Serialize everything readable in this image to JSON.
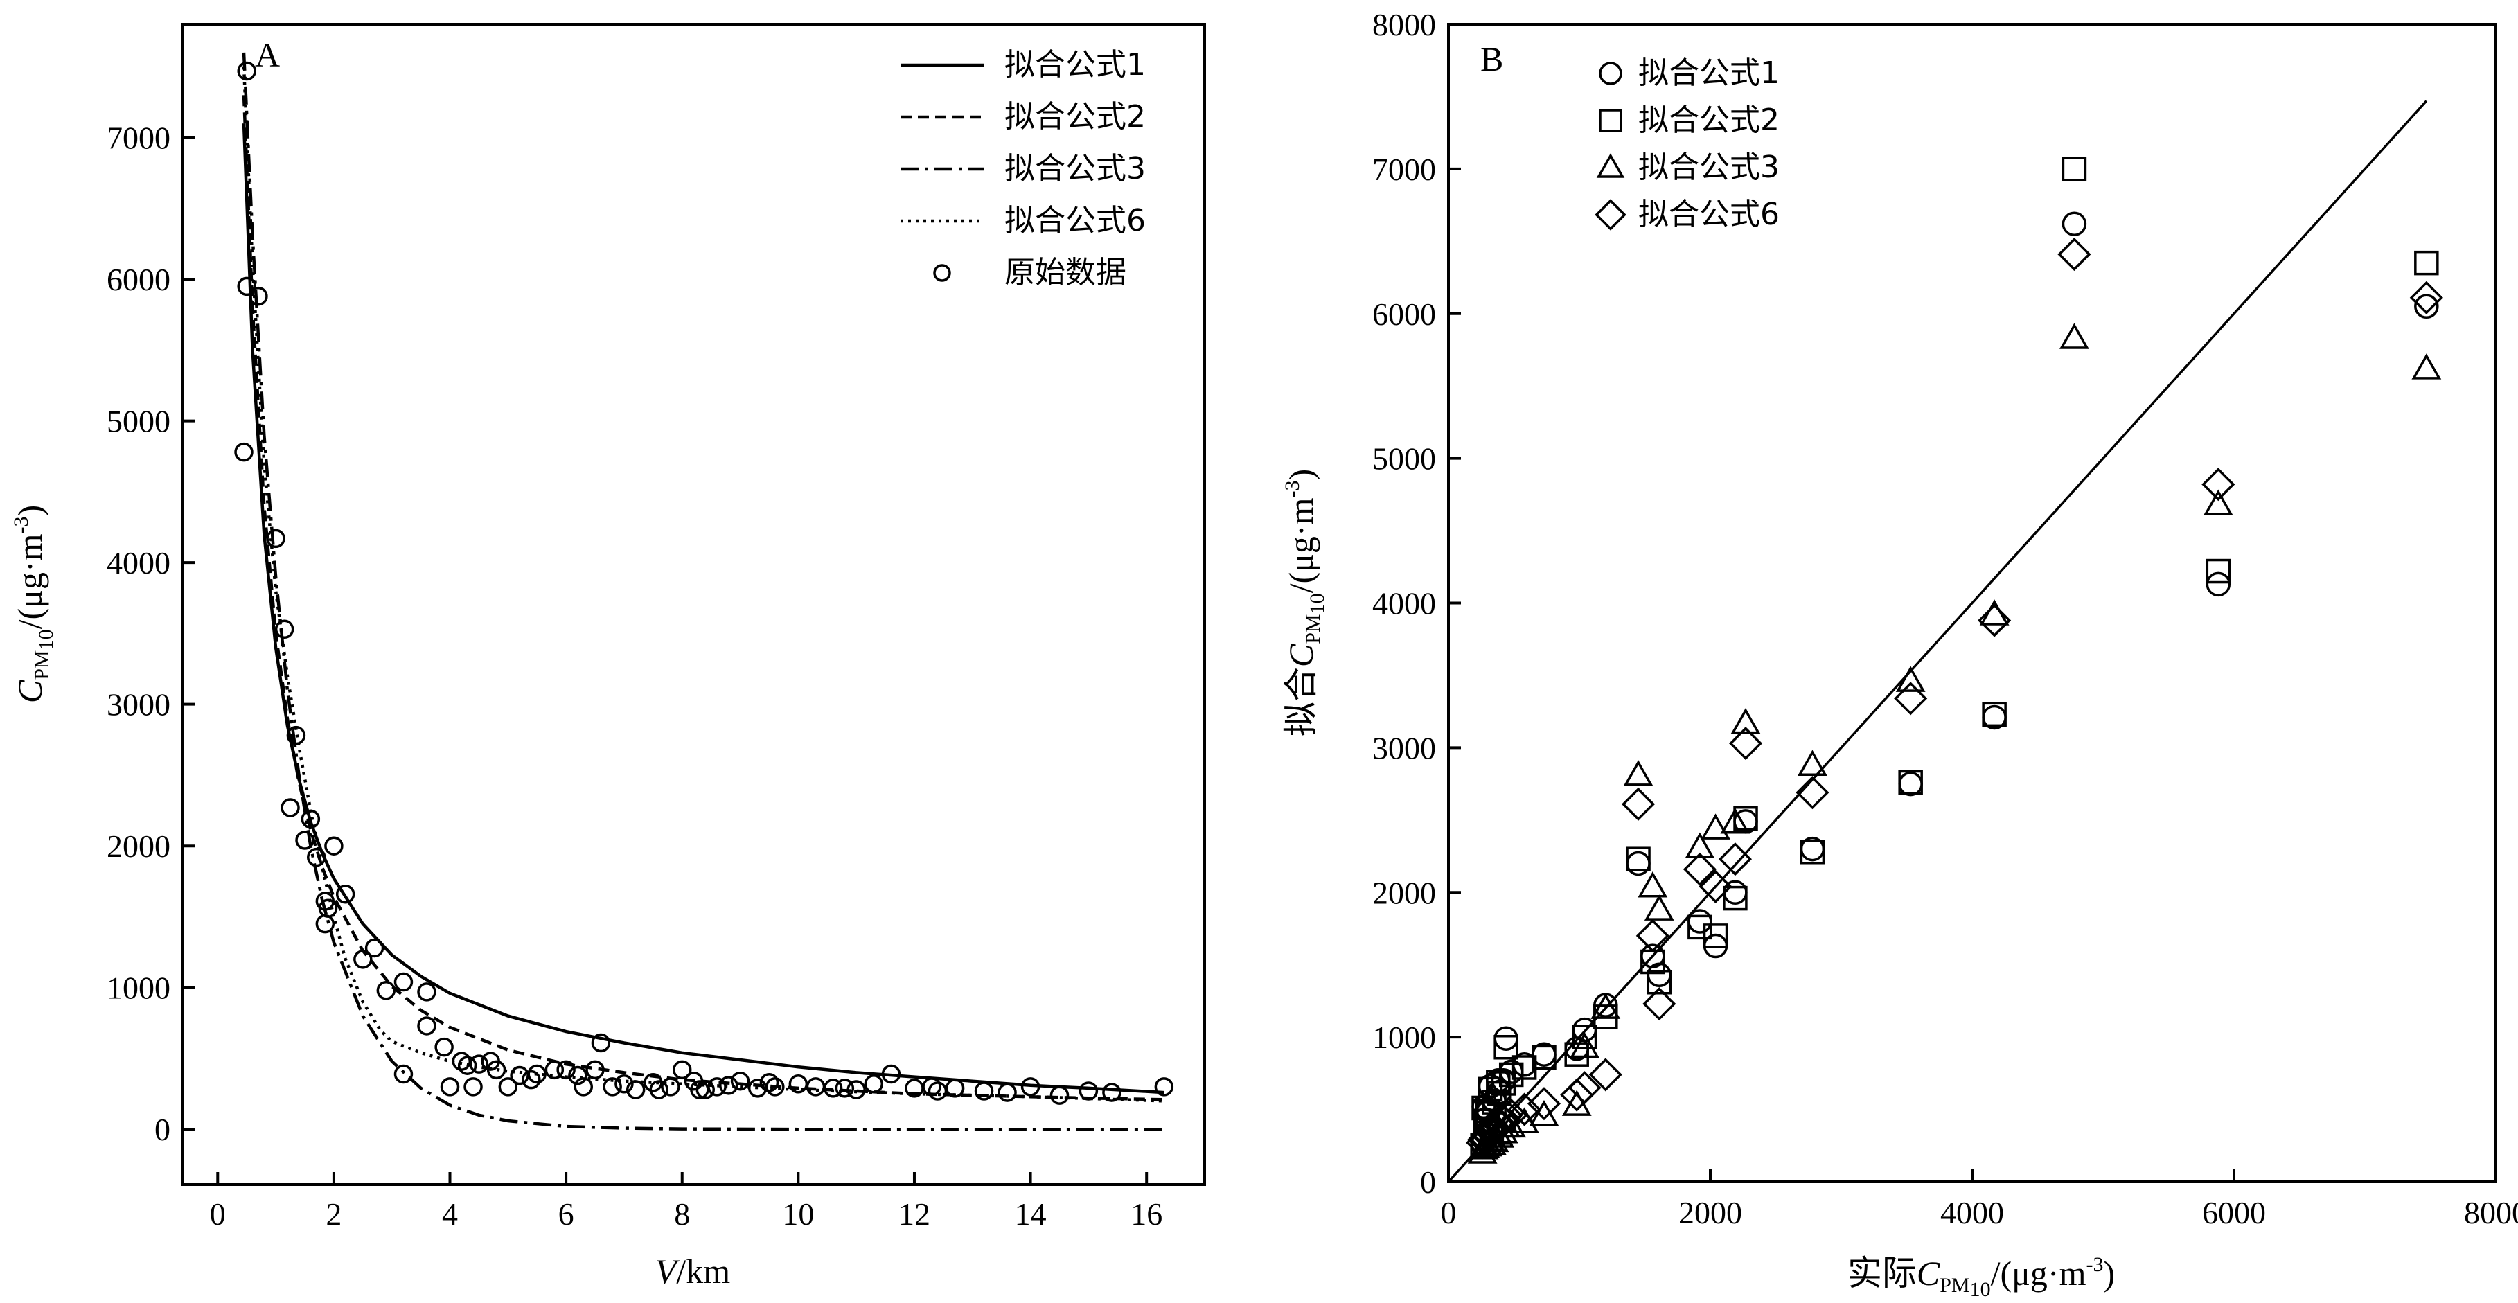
{
  "chart_data": [
    {
      "panel": "A",
      "type": "scatter",
      "xlabel": "V/km",
      "ylabel": "C_PM10/(μg·m⁻³)",
      "xlim": [
        -0.6,
        17.0
      ],
      "ylim": [
        -390,
        7800
      ],
      "xticks": [
        0,
        2,
        4,
        6,
        8,
        10,
        12,
        14,
        16
      ],
      "yticks": [
        0,
        1000,
        2000,
        3000,
        4000,
        5000,
        6000,
        7000
      ],
      "legend": {
        "position": "top-right",
        "entries": [
          {
            "label": "拟合公式1",
            "style": "solid"
          },
          {
            "label": "拟合公式2",
            "style": "dashed"
          },
          {
            "label": "拟合公式3",
            "style": "dashdot"
          },
          {
            "label": "拟合公式6",
            "style": "dotted"
          },
          {
            "label": "原始数据",
            "style": "circle"
          }
        ]
      },
      "series": [
        {
          "name": "拟合公式1",
          "style": "solid",
          "x": [
            0.45,
            0.6,
            0.8,
            1.0,
            1.2,
            1.4,
            1.6,
            1.8,
            2.0,
            2.5,
            3.0,
            3.5,
            4.0,
            5.0,
            6.0,
            7.0,
            8.0,
            9.0,
            10.0,
            11.0,
            12.0,
            13.0,
            14.0,
            15.0,
            16.3
          ],
          "y": [
            7100,
            5500,
            4200,
            3400,
            2850,
            2470,
            2170,
            1950,
            1770,
            1450,
            1230,
            1080,
            960,
            800,
            690,
            610,
            540,
            490,
            440,
            400,
            370,
            340,
            310,
            290,
            260
          ]
        },
        {
          "name": "拟合公式2",
          "style": "dashed",
          "x": [
            0.45,
            0.6,
            0.8,
            1.0,
            1.2,
            1.4,
            1.6,
            1.8,
            2.0,
            2.5,
            3.0,
            3.5,
            4.0,
            5.0,
            6.0,
            7.0,
            8.0,
            9.0,
            10.0,
            11.0,
            12.0,
            13.0,
            14.0,
            15.0,
            16.3
          ],
          "y": [
            7300,
            5800,
            4400,
            3500,
            2900,
            2450,
            2110,
            1850,
            1640,
            1260,
            1010,
            840,
            720,
            560,
            460,
            400,
            350,
            320,
            290,
            270,
            250,
            240,
            230,
            220,
            210
          ]
        },
        {
          "name": "拟合公式3",
          "style": "dashdot",
          "x": [
            0.45,
            0.6,
            0.8,
            1.0,
            1.2,
            1.4,
            1.6,
            1.8,
            2.0,
            2.5,
            3.0,
            3.5,
            4.0,
            4.5,
            5.0,
            6.0,
            7.0,
            8.0,
            10.0,
            12.0,
            14.0,
            16.3
          ],
          "y": [
            7600,
            6300,
            4900,
            3900,
            3100,
            2500,
            2000,
            1620,
            1320,
            800,
            480,
            290,
            170,
            100,
            60,
            20,
            8,
            3,
            0,
            0,
            0,
            0
          ]
        },
        {
          "name": "拟合公式6",
          "style": "dotted",
          "x": [
            0.45,
            0.6,
            0.8,
            1.0,
            1.2,
            1.4,
            1.6,
            1.8,
            2.0,
            2.2,
            2.5,
            2.8,
            3.0,
            3.5,
            4.0,
            4.5,
            5.0,
            6.0,
            7.0,
            8.0,
            10.0,
            12.0,
            14.0,
            16.3
          ],
          "y": [
            7500,
            6100,
            4700,
            3800,
            3200,
            2700,
            2250,
            1850,
            1500,
            1200,
            900,
            700,
            620,
            540,
            480,
            440,
            410,
            370,
            340,
            320,
            280,
            250,
            230,
            200
          ]
        },
        {
          "name": "原始数据",
          "style": "circle",
          "x": [
            0.5,
            0.45,
            0.7,
            0.5,
            1.0,
            1.15,
            1.35,
            1.25,
            1.6,
            1.5,
            1.7,
            1.85,
            1.9,
            2.0,
            2.2,
            1.85,
            2.5,
            2.7,
            2.9,
            3.2,
            3.6,
            3.2,
            3.6,
            3.9,
            4.0,
            4.2,
            4.3,
            4.5,
            4.7,
            5.0,
            5.2,
            5.5,
            5.8,
            6.0,
            6.2,
            6.5,
            6.6,
            6.8,
            7.0,
            7.2,
            7.5,
            7.8,
            8.0,
            8.2,
            8.4,
            8.6,
            8.8,
            9.0,
            9.3,
            9.6,
            10.0,
            10.3,
            10.6,
            11.0,
            11.3,
            11.6,
            12.0,
            12.3,
            12.7,
            13.2,
            13.6,
            14.0,
            14.5,
            15.0,
            15.4,
            16.3,
            4.4,
            4.8,
            5.4,
            6.3,
            7.6,
            8.3,
            9.5,
            10.8,
            12.4
          ],
          "y": [
            7470,
            4780,
            5880,
            5950,
            4170,
            3530,
            2780,
            2270,
            2190,
            2040,
            1920,
            1610,
            1560,
            2000,
            1660,
            1450,
            1200,
            1280,
            980,
            1040,
            970,
            390,
            730,
            580,
            300,
            480,
            450,
            460,
            480,
            300,
            380,
            390,
            420,
            420,
            380,
            420,
            610,
            300,
            320,
            280,
            330,
            300,
            420,
            340,
            280,
            300,
            310,
            340,
            290,
            300,
            320,
            300,
            290,
            280,
            320,
            390,
            290,
            300,
            290,
            270,
            260,
            300,
            240,
            270,
            260,
            300,
            300,
            420,
            350,
            300,
            280,
            280,
            330,
            290,
            270
          ]
        }
      ]
    },
    {
      "panel": "B",
      "type": "scatter",
      "xlabel": "实际C_PM10/(μg·m⁻³)",
      "ylabel": "拟合C_PM10/(μg·m⁻³)",
      "xlim": [
        0,
        8000
      ],
      "ylim": [
        0,
        8000
      ],
      "xticks": [
        0,
        2000,
        4000,
        6000,
        8000
      ],
      "yticks": [
        0,
        1000,
        2000,
        3000,
        4000,
        5000,
        6000,
        7000,
        8000
      ],
      "legend": {
        "position": "top-left",
        "entries": [
          {
            "label": "拟合公式1",
            "marker": "circle"
          },
          {
            "label": "拟合公式2",
            "marker": "square"
          },
          {
            "label": "拟合公式3",
            "marker": "triangle"
          },
          {
            "label": "拟合公式6",
            "marker": "diamond"
          }
        ]
      },
      "reference_line": {
        "x": [
          0,
          7470
        ],
        "y": [
          0,
          7470
        ]
      },
      "series": [
        {
          "name": "拟合公式1",
          "marker": "circle",
          "x": [
            7470,
            5880,
            4780,
            4170,
            3530,
            2780,
            2270,
            2190,
            2040,
            1920,
            1610,
            1560,
            1450,
            1200,
            1040,
            980,
            730,
            580,
            480,
            420,
            390,
            350,
            300,
            280,
            320,
            380,
            270,
            300,
            440,
            330,
            260
          ],
          "y": [
            6050,
            4130,
            6620,
            3210,
            2750,
            2300,
            2490,
            2000,
            1630,
            1800,
            1430,
            1560,
            2200,
            1220,
            1050,
            920,
            880,
            810,
            760,
            700,
            620,
            560,
            500,
            430,
            660,
            700,
            520,
            480,
            990,
            360,
            260
          ]
        },
        {
          "name": "拟合公式2",
          "marker": "square",
          "x": [
            7470,
            5880,
            4780,
            4170,
            3530,
            2780,
            2270,
            2190,
            2040,
            1920,
            1610,
            1560,
            1450,
            1200,
            1040,
            980,
            730,
            580,
            480,
            420,
            390,
            350,
            300,
            280,
            320,
            380,
            270,
            300,
            440,
            330,
            260
          ],
          "y": [
            6350,
            4220,
            7000,
            3230,
            2760,
            2280,
            2510,
            1960,
            1700,
            1760,
            1380,
            1520,
            2230,
            1140,
            1000,
            880,
            860,
            790,
            740,
            680,
            610,
            550,
            490,
            420,
            640,
            690,
            510,
            470,
            930,
            350,
            250
          ]
        },
        {
          "name": "拟合公式3",
          "marker": "triangle",
          "x": [
            7470,
            5880,
            4780,
            4170,
            3530,
            2780,
            2270,
            2190,
            2040,
            1920,
            1610,
            1560,
            1450,
            1200,
            1040,
            980,
            730,
            580,
            480,
            420,
            390,
            350,
            300,
            280,
            320,
            380,
            270,
            300,
            440,
            330,
            260
          ],
          "y": [
            5620,
            4680,
            5830,
            3920,
            3460,
            2880,
            3170,
            2480,
            2440,
            2310,
            1880,
            2040,
            2810,
            1200,
            930,
            530,
            460,
            410,
            380,
            340,
            310,
            280,
            260,
            240,
            290,
            330,
            230,
            250,
            380,
            260,
            200
          ]
        },
        {
          "name": "拟合公式6",
          "marker": "diamond",
          "x": [
            7470,
            5880,
            4780,
            4170,
            3530,
            2780,
            2270,
            2190,
            2040,
            1920,
            1610,
            1560,
            1450,
            1200,
            1040,
            980,
            730,
            580,
            480,
            420,
            390,
            350,
            300,
            280,
            320,
            380,
            270,
            300,
            440,
            330,
            260
          ],
          "y": [
            6110,
            4820,
            6410,
            3880,
            3340,
            2690,
            3030,
            2230,
            2040,
            2160,
            1230,
            1700,
            2610,
            740,
            650,
            600,
            540,
            500,
            460,
            420,
            390,
            360,
            330,
            300,
            370,
            410,
            290,
            320,
            460,
            340,
            270
          ]
        }
      ]
    }
  ],
  "panelA": {
    "label": "A",
    "xlabel_main": "V",
    "xlabel_unit": "/km",
    "ylabel_main": "C",
    "ylabel_sub": "PM",
    "ylabel_subsub": "10",
    "ylabel_unit": "/(μg·m",
    "ylabel_sup": "-3",
    "ylabel_close": ")"
  },
  "panelB": {
    "label": "B",
    "xlabel_prefix": "实际",
    "xlabel_main": "C",
    "xlabel_sub": "PM",
    "xlabel_subsub": "10",
    "xlabel_unit": "/(μg·m",
    "xlabel_sup": "-3",
    "xlabel_close": ")",
    "ylabel_prefix": "拟合",
    "ylabel_main": "C",
    "ylabel_sub": "PM",
    "ylabel_subsub": "10",
    "ylabel_unit": "/(μg·m",
    "ylabel_sup": "-3",
    "ylabel_close": ")"
  }
}
